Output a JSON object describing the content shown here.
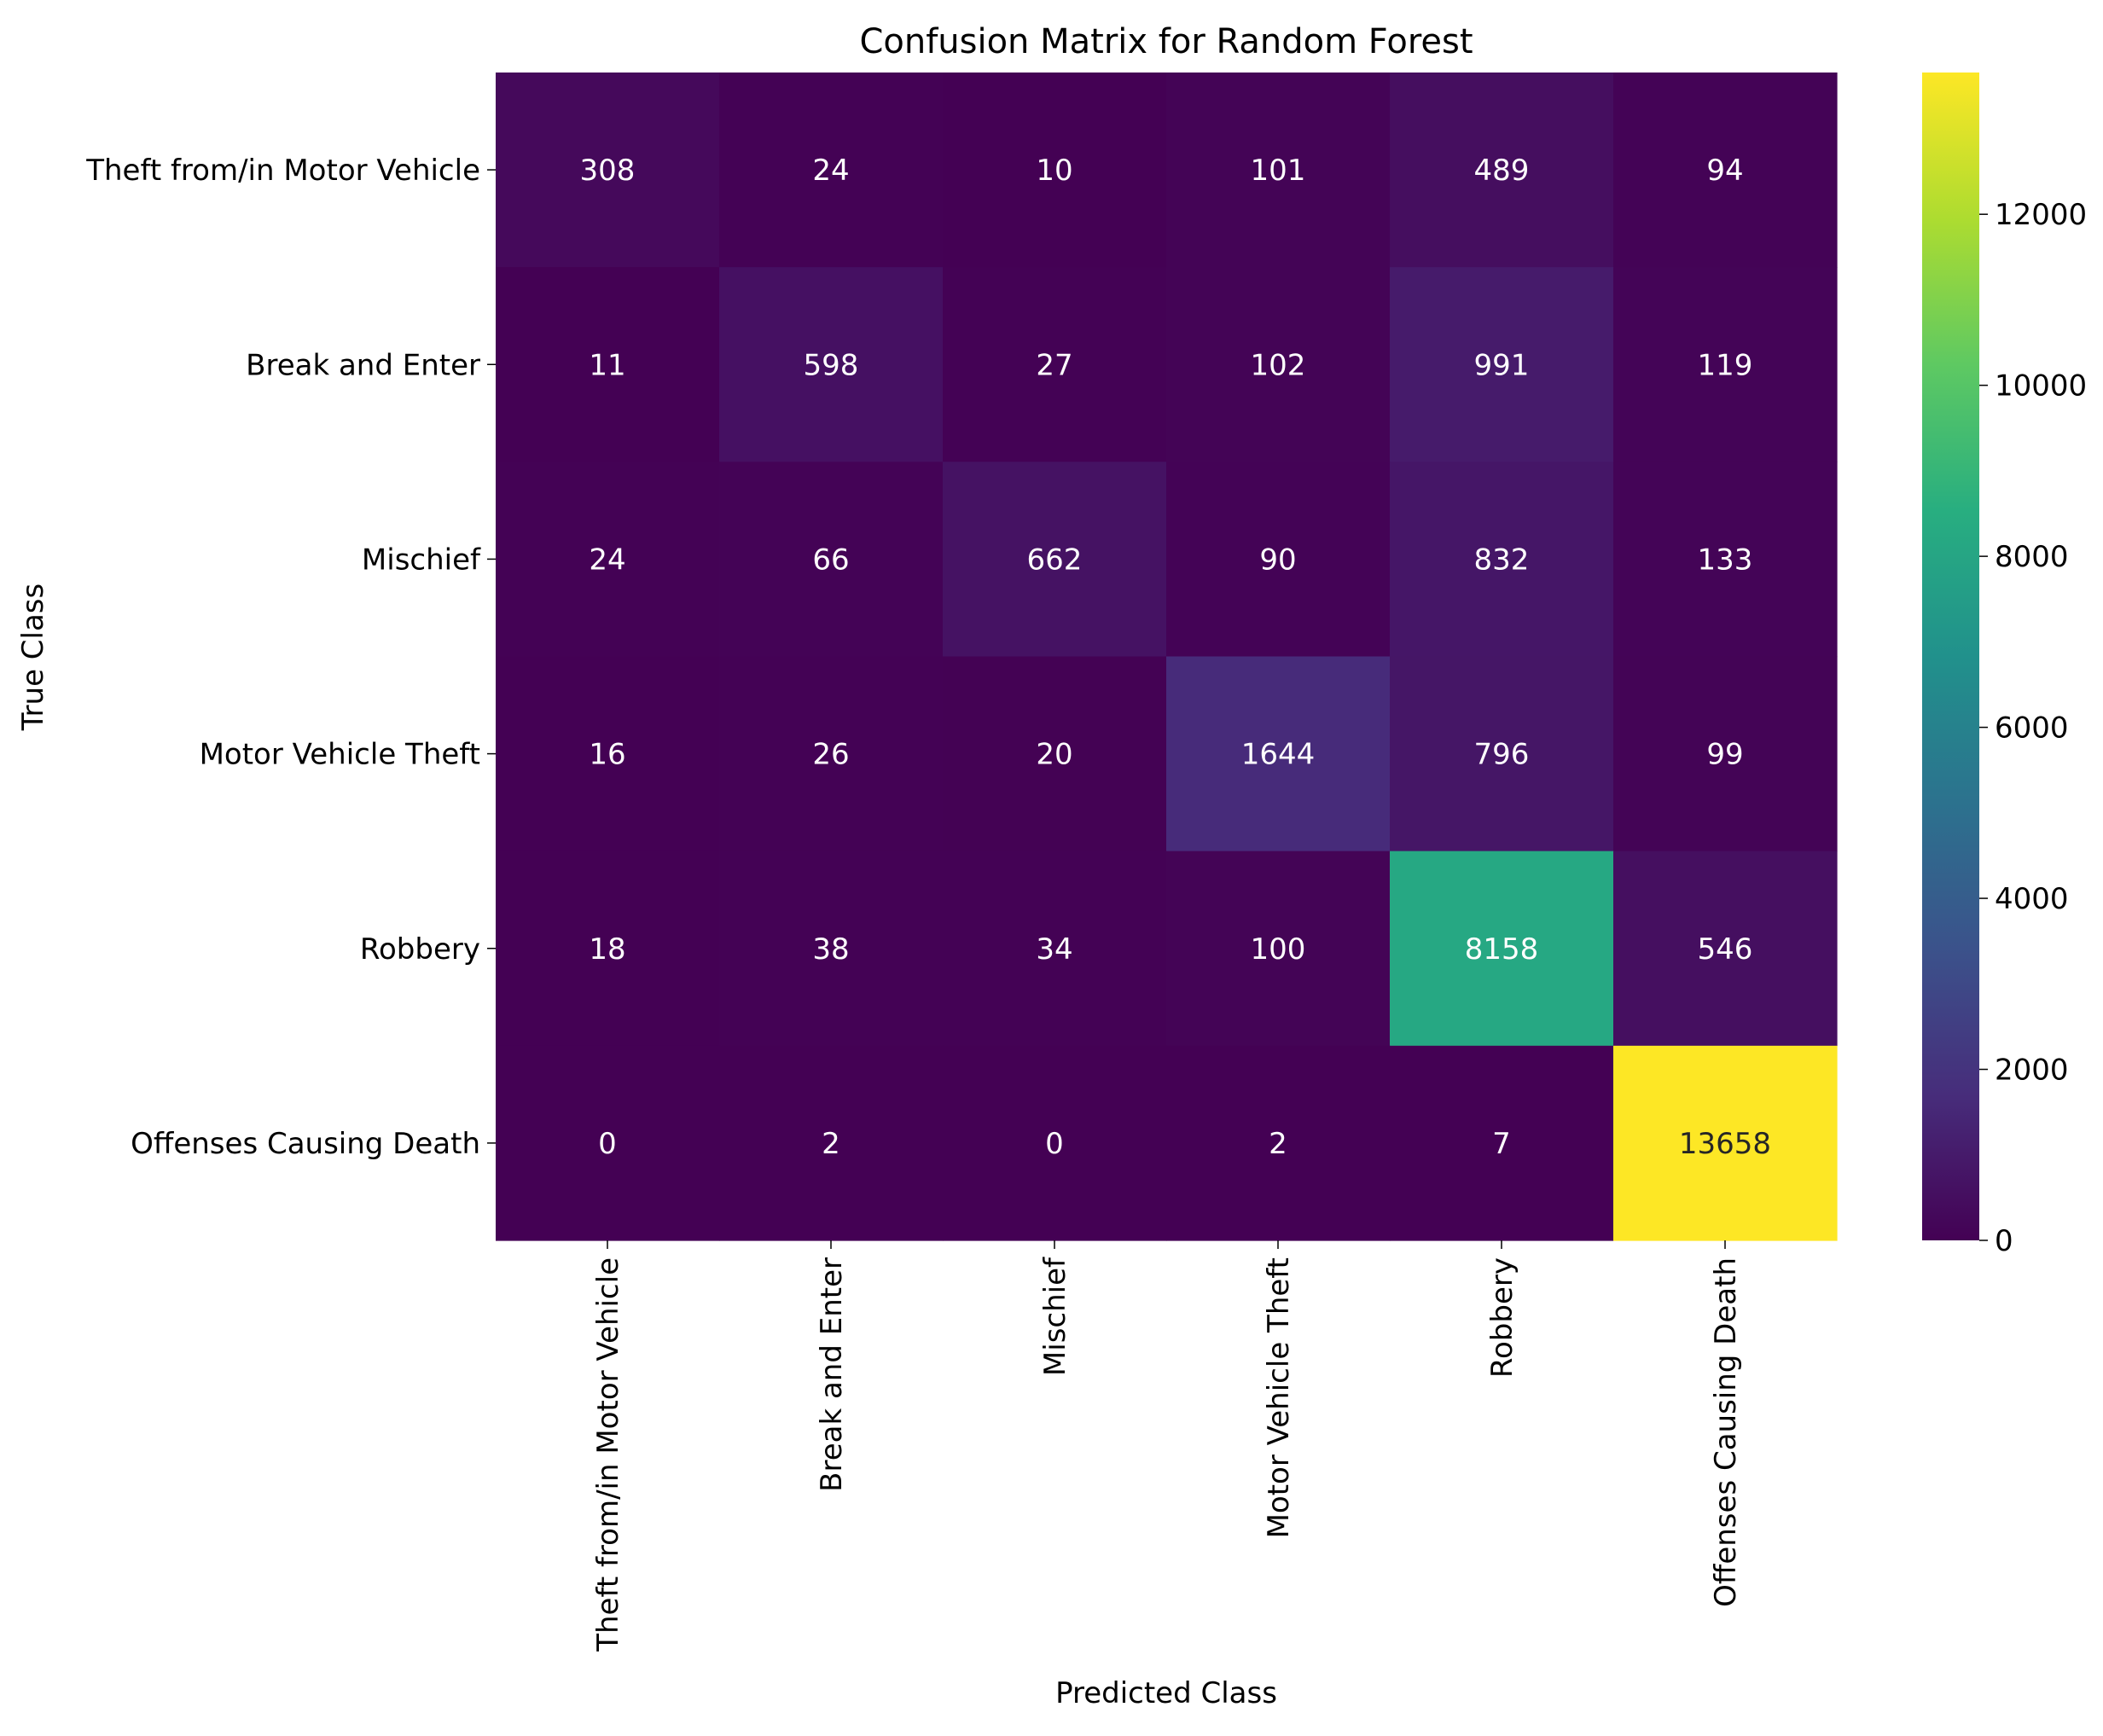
{
  "chart_data": {
    "type": "heatmap",
    "title": "Confusion Matrix for Random Forest",
    "xlabel": "Predicted Class",
    "ylabel": "True Class",
    "row_labels": [
      "Theft from/in Motor Vehicle",
      "Break and Enter",
      "Mischief",
      "Motor Vehicle Theft",
      "Robbery",
      "Offenses Causing Death"
    ],
    "col_labels": [
      "Theft from/in Motor Vehicle",
      "Break and Enter",
      "Mischief",
      "Motor Vehicle Theft",
      "Robbery",
      "Offenses Causing Death"
    ],
    "values": [
      [
        308,
        24,
        10,
        101,
        489,
        94
      ],
      [
        11,
        598,
        27,
        102,
        991,
        119
      ],
      [
        24,
        66,
        662,
        90,
        832,
        133
      ],
      [
        16,
        26,
        20,
        1644,
        796,
        99
      ],
      [
        18,
        38,
        34,
        100,
        8158,
        546
      ],
      [
        0,
        2,
        0,
        2,
        7,
        13658
      ]
    ],
    "colormap": "viridis",
    "colorbar": {
      "range": [
        0,
        13658
      ],
      "ticks": [
        0,
        2000,
        4000,
        6000,
        8000,
        10000,
        12000
      ]
    },
    "grid": false,
    "annotation_colors": {
      "dark_cells": "#ffffff",
      "light_cells": "#262626"
    }
  }
}
